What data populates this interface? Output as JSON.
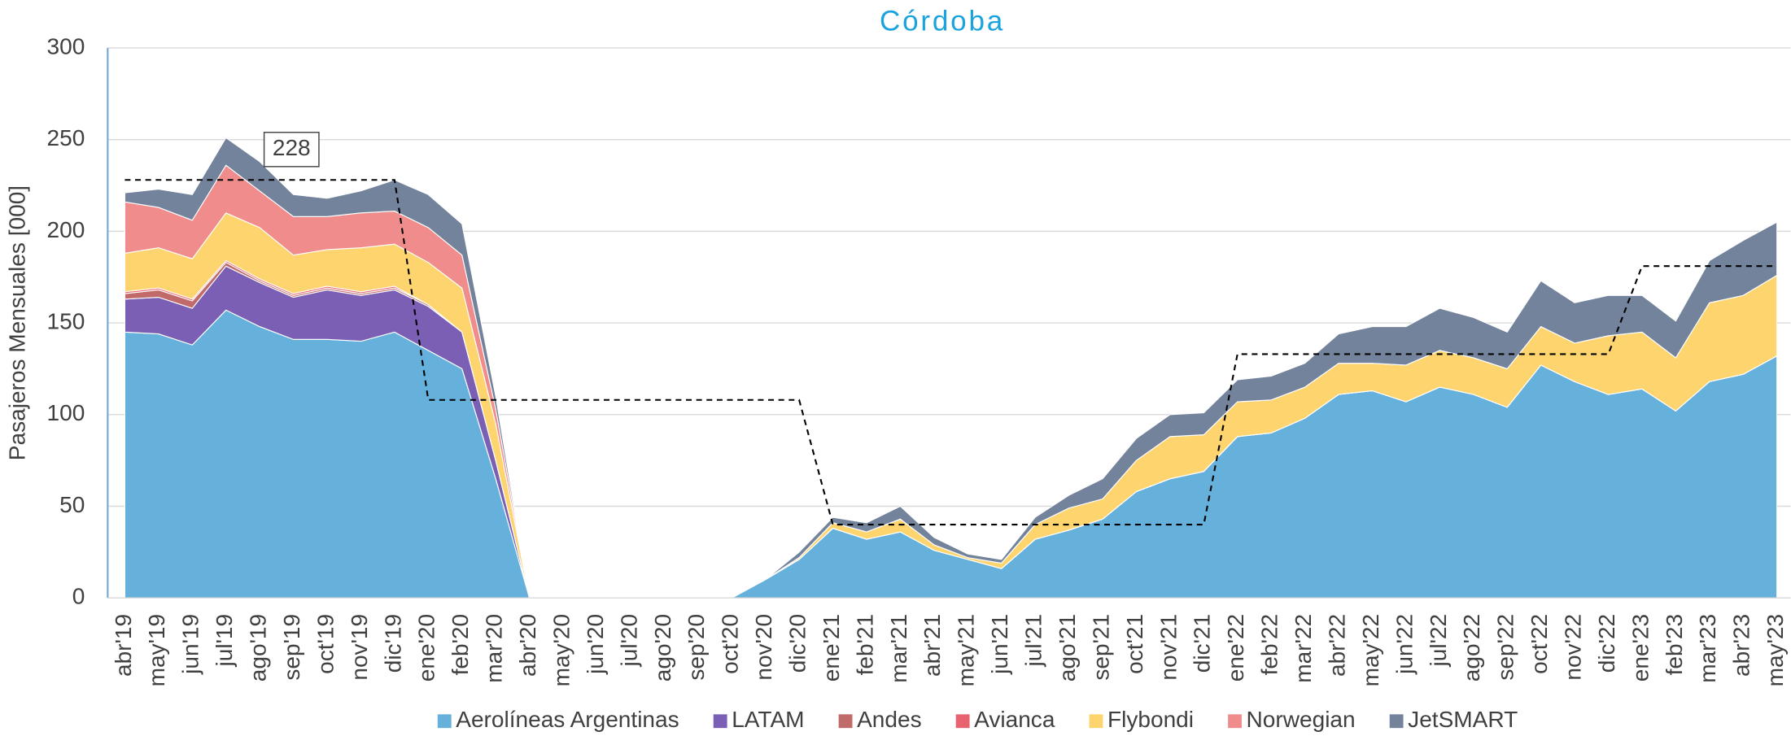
{
  "chart_data": {
    "type": "stacked_area",
    "title": "Córdoba",
    "y_label": "Pasajeros Mensuales [000]",
    "categories": [
      "abr'19",
      "may'19",
      "jun'19",
      "jul'19",
      "ago'19",
      "sep'19",
      "oct'19",
      "nov'19",
      "dic'19",
      "ene'20",
      "feb'20",
      "mar'20",
      "abr'20",
      "may'20",
      "jun'20",
      "jul'20",
      "ago'20",
      "sep'20",
      "oct'20",
      "nov'20",
      "dic'20",
      "ene'21",
      "feb'21",
      "mar'21",
      "abr'21",
      "may'21",
      "jun'21",
      "jul'21",
      "ago'21",
      "sep'21",
      "oct'21",
      "nov'21",
      "dic'21",
      "ene'22",
      "feb'22",
      "mar'22",
      "abr'22",
      "may'22",
      "jun'22",
      "jul'22",
      "ago'22",
      "sep'22",
      "oct'22",
      "nov'22",
      "dic'22",
      "ene'23",
      "feb'23",
      "mar'23",
      "abr'23",
      "may'23"
    ],
    "series": [
      {
        "name": "Aerolíneas Argentinas",
        "color": "#66b0dc",
        "values": [
          145,
          144,
          138,
          157,
          148,
          141,
          141,
          140,
          145,
          135,
          125,
          65,
          0,
          0,
          0,
          0,
          0,
          0,
          0,
          10,
          21,
          38,
          32,
          36,
          26,
          21,
          16,
          32,
          37,
          43,
          58,
          65,
          69,
          88,
          90,
          98,
          111,
          113,
          107,
          115,
          111,
          104,
          127,
          118,
          111,
          114,
          102,
          118,
          122,
          132
        ]
      },
      {
        "name": "LATAM",
        "color": "#7b5fb5",
        "values": [
          18,
          20,
          20,
          24,
          24,
          23,
          27,
          25,
          23,
          24,
          20,
          10,
          0,
          0,
          0,
          0,
          0,
          0,
          0,
          0,
          0,
          0,
          0,
          0,
          0,
          0,
          0,
          0,
          0,
          0,
          0,
          0,
          0,
          0,
          0,
          0,
          0,
          0,
          0,
          0,
          0,
          0,
          0,
          0,
          0,
          0,
          0,
          0,
          0,
          0
        ]
      },
      {
        "name": "Andes",
        "color": "#c06a6a",
        "values": [
          3,
          4,
          4,
          2,
          1,
          1,
          1,
          1,
          1,
          1,
          0,
          0,
          0,
          0,
          0,
          0,
          0,
          0,
          0,
          0,
          0,
          0,
          0,
          0,
          0,
          0,
          0,
          0,
          0,
          0,
          0,
          0,
          0,
          0,
          0,
          0,
          0,
          0,
          0,
          0,
          0,
          0,
          0,
          0,
          0,
          0,
          0,
          0,
          0,
          0
        ]
      },
      {
        "name": "Avianca",
        "color": "#e8636f",
        "values": [
          1,
          1,
          1,
          1,
          1,
          1,
          1,
          1,
          1,
          0,
          0,
          0,
          0,
          0,
          0,
          0,
          0,
          0,
          0,
          0,
          0,
          0,
          0,
          0,
          0,
          0,
          0,
          0,
          0,
          0,
          0,
          0,
          0,
          0,
          0,
          0,
          0,
          0,
          0,
          0,
          0,
          0,
          0,
          0,
          0,
          0,
          0,
          0,
          0,
          0
        ]
      },
      {
        "name": "Flybondi",
        "color": "#fdd46e",
        "values": [
          21,
          22,
          22,
          26,
          28,
          21,
          20,
          24,
          23,
          23,
          24,
          20,
          0,
          0,
          0,
          0,
          0,
          0,
          0,
          0,
          1,
          3,
          4,
          7,
          3,
          1,
          3,
          8,
          12,
          11,
          17,
          23,
          20,
          19,
          18,
          17,
          17,
          15,
          20,
          20,
          20,
          21,
          21,
          21,
          32,
          31,
          29,
          43,
          43,
          44
        ]
      },
      {
        "name": "Norwegian",
        "color": "#f08c8c",
        "values": [
          28,
          22,
          21,
          26,
          20,
          21,
          18,
          19,
          18,
          19,
          18,
          8,
          0,
          0,
          0,
          0,
          0,
          0,
          0,
          0,
          0,
          0,
          0,
          0,
          0,
          0,
          0,
          0,
          0,
          0,
          0,
          0,
          0,
          0,
          0,
          0,
          0,
          0,
          0,
          0,
          0,
          0,
          0,
          0,
          0,
          0,
          0,
          0,
          0,
          0
        ]
      },
      {
        "name": "JetSMART",
        "color": "#74839c",
        "values": [
          5,
          10,
          14,
          15,
          16,
          12,
          10,
          12,
          17,
          18,
          17,
          7,
          0,
          0,
          0,
          0,
          0,
          0,
          0,
          0,
          3,
          3,
          5,
          7,
          4,
          2,
          2,
          4,
          7,
          11,
          12,
          12,
          12,
          12,
          13,
          13,
          16,
          20,
          21,
          23,
          22,
          20,
          25,
          22,
          22,
          20,
          20,
          23,
          30,
          29
        ]
      }
    ],
    "reference_line": {
      "color": "#000000",
      "values": [
        228,
        228,
        228,
        228,
        228,
        228,
        228,
        228,
        228,
        108,
        108,
        108,
        108,
        108,
        108,
        108,
        108,
        108,
        108,
        108,
        108,
        40,
        40,
        40,
        40,
        40,
        40,
        40,
        40,
        40,
        40,
        40,
        40,
        133,
        133,
        133,
        133,
        133,
        133,
        133,
        133,
        133,
        133,
        133,
        133,
        181,
        181,
        181,
        181,
        181
      ]
    },
    "ylim": [
      0,
      300
    ],
    "yticks": [
      0,
      50,
      100,
      150,
      200,
      250,
      300
    ],
    "grid": true,
    "legend": "bottom"
  }
}
